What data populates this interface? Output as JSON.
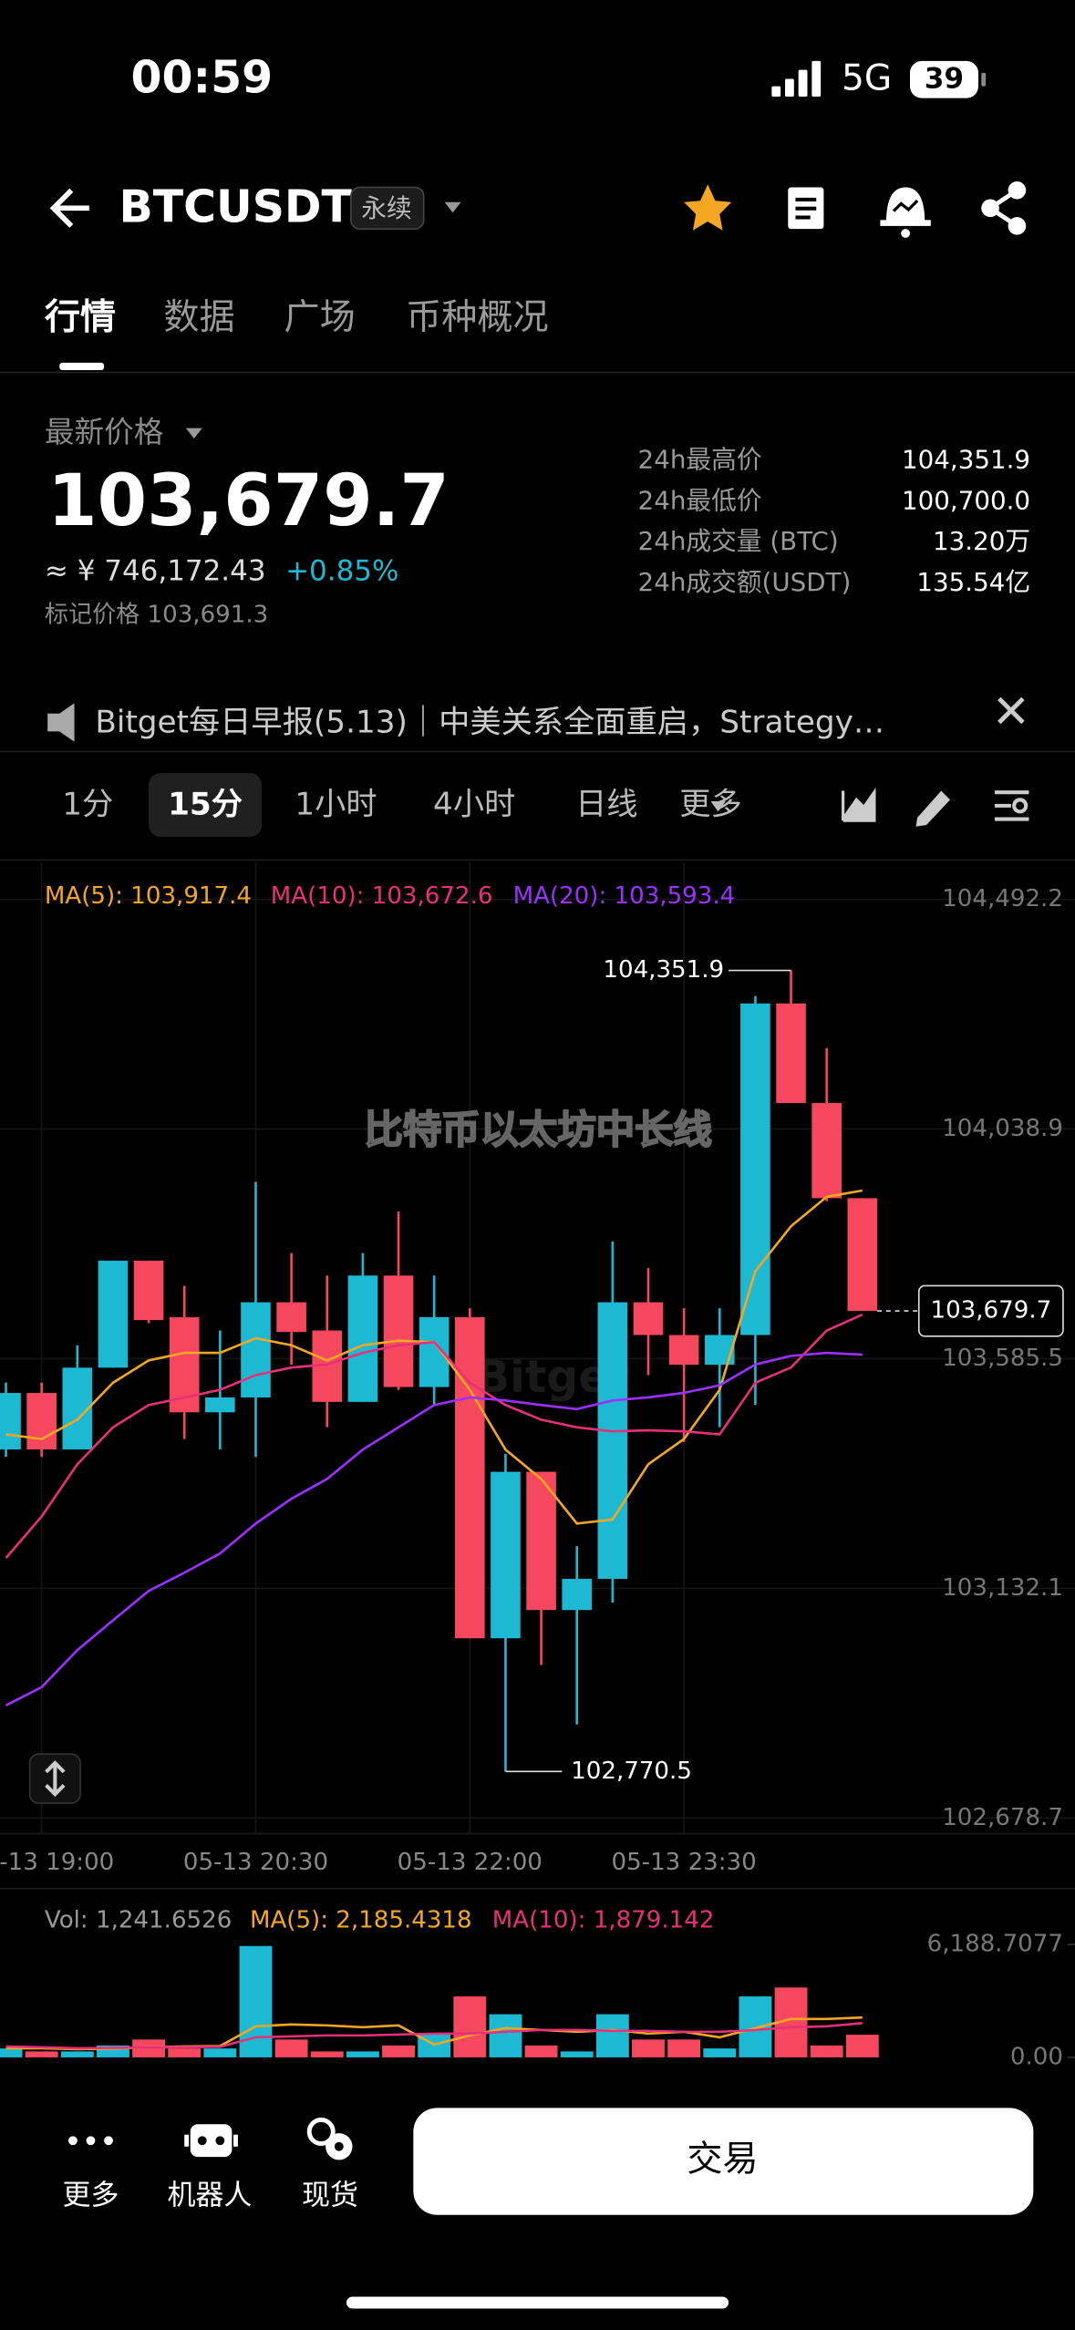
{
  "status": {
    "time": "00:59",
    "network": "5G",
    "battery": "39"
  },
  "header": {
    "symbol": "BTCUSDT",
    "tag": "永续"
  },
  "tabs": [
    "行情",
    "数据",
    "广场",
    "币种概况"
  ],
  "price": {
    "label": "最新价格",
    "last": "103,679.7",
    "cny": "≈ ¥ 746,172.43",
    "change": "+0.85%",
    "mark": "标记价格 103,691.3"
  },
  "stats": [
    [
      "24h最高价",
      "104,351.9"
    ],
    [
      "24h最低价",
      "100,700.0"
    ],
    [
      "24h成交量 (BTC)",
      "13.20万"
    ],
    [
      "24h成交额(USDT)",
      "135.54亿"
    ]
  ],
  "news": "Bitget每日早报(5.13)｜中美关系全面重启，Strategy…",
  "intervals": [
    "1分",
    "15分",
    "1小时",
    "4小时",
    "日线",
    "更多"
  ],
  "watermark": "比特币以太坊中长线",
  "brand": "Bitget",
  "bottom": {
    "items": [
      "更多",
      "机器人",
      "现货"
    ],
    "button": "交易"
  },
  "chart_data": [
    {
      "type": "candlestick",
      "up_color": "#1db9d3",
      "down_color": "#f5475d",
      "ylim": [
        102678.7,
        104492.2
      ],
      "yticks": [
        {
          "value": 104492.2,
          "label": "104,492.2"
        },
        {
          "value": 104038.9,
          "label": "104,038.9"
        },
        {
          "value": 103585.5,
          "label": "103,585.5"
        },
        {
          "value": 103132.1,
          "label": "103,132.1"
        },
        {
          "value": 102678.7,
          "label": "102,678.7"
        }
      ],
      "xticks": [
        {
          "value": 1,
          "label": "05-13 19:00"
        },
        {
          "value": 7,
          "label": "05-13 20:30"
        },
        {
          "value": 13,
          "label": "05-13 22:00"
        },
        {
          "value": 19,
          "label": "05-13 23:30"
        }
      ],
      "candles": [
        {
          "open": 103406.3,
          "high": 103538.4,
          "low": 103391.6,
          "close": 103517.8
        },
        {
          "open": 103517.8,
          "high": 103538.4,
          "low": 103391.6,
          "close": 103406.3
        },
        {
          "open": 103406.3,
          "high": 103611.7,
          "low": 103406.3,
          "close": 103567.7
        },
        {
          "open": 103567.7,
          "high": 103779.0,
          "low": 103567.7,
          "close": 103779.0
        },
        {
          "open": 103779.0,
          "high": 103779.0,
          "low": 103655.7,
          "close": 103661.6
        },
        {
          "open": 103667.5,
          "high": 103729.1,
          "low": 103426.8,
          "close": 103479.6
        },
        {
          "open": 103479.6,
          "high": 103641.1,
          "low": 103406.3,
          "close": 103508.9
        },
        {
          "open": 103508.9,
          "high": 103934.6,
          "low": 103391.6,
          "close": 103696.8
        },
        {
          "open": 103696.8,
          "high": 103793.7,
          "low": 103573.5,
          "close": 103638.1
        },
        {
          "open": 103641.1,
          "high": 103749.6,
          "low": 103450.3,
          "close": 103500.2
        },
        {
          "open": 103500.2,
          "high": 103793.7,
          "low": 103500.2,
          "close": 103749.6
        },
        {
          "open": 103749.6,
          "high": 103875.8,
          "low": 103523.7,
          "close": 103529.5
        },
        {
          "open": 103529.5,
          "high": 103749.6,
          "low": 103494.3,
          "close": 103667.5
        },
        {
          "open": 103667.5,
          "high": 103685.1,
          "low": 103033.5,
          "close": 103033.5
        },
        {
          "open": 103033.5,
          "high": 103397.5,
          "low": 102770.5,
          "close": 103362.2
        },
        {
          "open": 103362.2,
          "high": 103362.2,
          "low": 102980.7,
          "close": 103089.3
        },
        {
          "open": 103089.3,
          "high": 103215.5,
          "low": 102863.3,
          "close": 103150.9
        },
        {
          "open": 103150.9,
          "high": 103817.2,
          "low": 103104.0,
          "close": 103696.8
        },
        {
          "open": 103696.8,
          "high": 103764.3,
          "low": 103553.0,
          "close": 103632.2
        },
        {
          "open": 103632.2,
          "high": 103685.1,
          "low": 103420.9,
          "close": 103573.5
        },
        {
          "open": 103573.5,
          "high": 103685.1,
          "low": 103450.3,
          "close": 103632.2
        },
        {
          "open": 103632.2,
          "high": 104301.4,
          "low": 103494.3,
          "close": 104286.8
        },
        {
          "open": 104286.8,
          "high": 104351.9,
          "low": 104090.1,
          "close": 104090.1
        },
        {
          "open": 104090.1,
          "high": 104198.7,
          "low": 103896.4,
          "close": 103902.3
        },
        {
          "open": 103902.3,
          "high": 103902.3,
          "low": 103679.7,
          "close": 103679.7
        }
      ],
      "series": [
        {
          "name": "MA(5): 103,917.4",
          "color": "#f5a623",
          "values": [
            103436,
            103427,
            103465,
            103538,
            103582,
            103597,
            103597,
            103626,
            103612,
            103582,
            103612,
            103621,
            103618,
            103524,
            103406,
            103348,
            103260,
            103268,
            103377,
            103427,
            103524,
            103758,
            103847,
            103905,
            103917.4
          ]
        },
        {
          "name": "MA(10): 103,672.6",
          "color": "#e8307a",
          "values": [
            103192,
            103274,
            103377,
            103450,
            103494,
            103509,
            103524,
            103553,
            103568,
            103574,
            103597,
            103612,
            103618,
            103538,
            103494,
            103465,
            103450,
            103442,
            103444,
            103442,
            103436,
            103538,
            103568,
            103641,
            103672.6
          ]
        },
        {
          "name": "MA(20): 103,593.4",
          "color": "#9b30ff",
          "values": [
            102901,
            102937,
            103010,
            103069,
            103127,
            103163,
            103201,
            103260,
            103309,
            103348,
            103406,
            103450,
            103494,
            103509,
            103503,
            103494,
            103486,
            103503,
            103509,
            103518,
            103533,
            103574,
            103591,
            103597,
            103593.4
          ]
        }
      ],
      "high_label": {
        "value": 104351.9,
        "label": "104,351.9"
      },
      "low_label": {
        "value": 102770.5,
        "label": "102,770.5"
      },
      "last_label": {
        "value": 103679.7,
        "label": "103,679.7"
      }
    },
    {
      "type": "bar",
      "title": "Vol: 1,241.6526",
      "ylim": [
        0,
        6188.7077
      ],
      "yticks": [
        {
          "value": 6188.7077,
          "label": "6,188.7077"
        },
        {
          "value": 0,
          "label": "0.00"
        }
      ],
      "values": [
        488,
        326,
        326,
        651,
        977,
        488,
        488,
        6100,
        977,
        326,
        326,
        651,
        1302,
        3337,
        2361,
        651,
        326,
        2361,
        977,
        977,
        488,
        3337,
        3826,
        651,
        1241.6526
      ],
      "series": [
        {
          "name": "MA(5): 2,185.4318",
          "color": "#f5a623",
          "values": [
            500,
            500,
            450,
            480,
            550,
            600,
            620,
            1700,
            1800,
            1750,
            1650,
            1750,
            700,
            1200,
            1600,
            1500,
            1400,
            1500,
            1300,
            1400,
            1100,
            1600,
            2100,
            2100,
            2185.4318
          ]
        },
        {
          "name": "MA(10): 1,879.142",
          "color": "#e8307a",
          "values": [
            600,
            550,
            500,
            520,
            540,
            560,
            580,
            1100,
            1150,
            1200,
            1200,
            1250,
            1300,
            1300,
            1400,
            1500,
            1500,
            1450,
            1450,
            1400,
            1400,
            1500,
            1650,
            1700,
            1879.142
          ]
        }
      ]
    }
  ]
}
